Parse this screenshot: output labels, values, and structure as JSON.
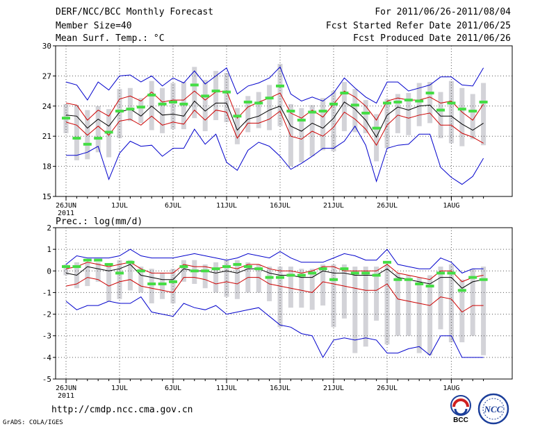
{
  "header": {
    "title": "DERF/NCC/BCC Monthly Forecast",
    "member_size": "Member Size=40",
    "variable_label": "Mean Surf. Temp.: °C",
    "period": "For 2011/06/26-2011/08/04",
    "fcst_started": "Fcst Started Refer Date 2011/06/25",
    "fcst_produced": "Fcst Produced Date 2011/06/26"
  },
  "footer": {
    "url": "http://cmdp.ncc.cma.gov.cn",
    "credit": "GrADS: COLA/IGES",
    "logo_bcc": "BCC",
    "logo_ncc": "NCC"
  },
  "colors": {
    "ensemble_mean": "#000000",
    "spread": "#cc0000",
    "extremes": "#0000cc",
    "box": "#d3d3d8",
    "marker": "#44dd44",
    "grid": "#555555"
  },
  "chart_data": [
    {
      "type": "line",
      "title": "Mean Surf. Temp.: °C",
      "xlabel": "",
      "ylabel": "°C",
      "ylim": [
        15,
        30
      ],
      "yticks": [
        "15",
        "18",
        "21",
        "24",
        "27",
        "30"
      ],
      "xticks": [
        {
          "day": 0,
          "label": "26JUN"
        },
        {
          "day": 5,
          "label": "1JUL"
        },
        {
          "day": 10,
          "label": "6JUL"
        },
        {
          "day": 15,
          "label": "11JUL"
        },
        {
          "day": 20,
          "label": "16JUL"
        },
        {
          "day": 25,
          "label": "21JUL"
        },
        {
          "day": 30,
          "label": "26JUL"
        },
        {
          "day": 36,
          "label": "1AUG"
        }
      ],
      "year_label": "2011",
      "x": [
        0,
        1,
        2,
        3,
        4,
        5,
        6,
        7,
        8,
        9,
        10,
        11,
        12,
        13,
        14,
        15,
        16,
        17,
        18,
        19,
        20,
        21,
        22,
        23,
        24,
        25,
        26,
        27,
        28,
        29,
        30,
        31,
        32,
        33,
        34,
        35,
        36,
        37,
        38,
        39
      ],
      "series": [
        {
          "name": "max",
          "values": [
            26.4,
            26.1,
            24.6,
            26.4,
            25.6,
            27.0,
            27.1,
            26.4,
            27.0,
            26.0,
            26.8,
            26.3,
            27.5,
            26.2,
            27.0,
            27.8,
            25.2,
            26.0,
            26.3,
            26.8,
            27.9,
            25.2,
            24.5,
            24.9,
            24.5,
            25.3,
            26.8,
            25.8,
            24.9,
            24.3,
            26.4,
            26.4,
            25.5,
            25.8,
            26.1,
            26.9,
            26.9,
            26.1,
            26.0,
            27.8
          ]
        },
        {
          "name": "upper",
          "values": [
            24.3,
            24.1,
            22.6,
            23.6,
            23.0,
            24.7,
            25.0,
            24.5,
            25.4,
            24.4,
            24.6,
            24.6,
            25.5,
            24.6,
            25.4,
            25.5,
            22.8,
            23.9,
            24.4,
            24.8,
            25.3,
            23.3,
            22.8,
            23.6,
            22.9,
            24.2,
            25.5,
            24.9,
            24.0,
            22.6,
            24.5,
            24.8,
            24.6,
            24.6,
            24.9,
            24.3,
            24.5,
            23.4,
            22.6,
            24.2
          ]
        },
        {
          "name": "mean",
          "values": [
            23.1,
            23.0,
            21.8,
            22.7,
            22.0,
            23.4,
            23.7,
            23.0,
            24.0,
            23.1,
            23.2,
            23.0,
            24.5,
            23.5,
            24.3,
            24.3,
            21.6,
            22.7,
            23.0,
            23.6,
            24.0,
            22.0,
            21.5,
            22.3,
            21.8,
            22.8,
            24.4,
            23.7,
            22.6,
            20.9,
            23.1,
            23.9,
            23.6,
            24.0,
            24.1,
            23.0,
            23.0,
            22.2,
            21.6,
            22.3
          ]
        },
        {
          "name": "lower",
          "values": [
            22.4,
            22.1,
            21.1,
            22.0,
            21.1,
            22.5,
            22.7,
            22.1,
            23.0,
            22.1,
            22.4,
            22.2,
            23.6,
            22.6,
            23.6,
            23.4,
            20.8,
            22.3,
            22.3,
            22.7,
            23.5,
            21.0,
            20.7,
            21.5,
            21.0,
            21.9,
            23.4,
            22.7,
            21.7,
            20.1,
            22.1,
            23.1,
            22.8,
            23.1,
            23.3,
            22.1,
            22.1,
            21.3,
            20.9,
            20.3
          ]
        },
        {
          "name": "min",
          "values": [
            19.1,
            19.1,
            19.4,
            20.0,
            16.7,
            19.3,
            20.5,
            20.0,
            20.1,
            19.0,
            19.8,
            19.8,
            21.7,
            20.2,
            21.2,
            18.4,
            17.6,
            19.6,
            20.4,
            20.0,
            19.0,
            17.7,
            18.3,
            19.0,
            19.8,
            19.8,
            20.5,
            22.0,
            20.1,
            16.5,
            19.8,
            20.1,
            20.2,
            21.2,
            21.2,
            17.9,
            16.9,
            16.2,
            17.0,
            18.8
          ]
        },
        {
          "name": "observed",
          "values": [
            22.8,
            20.8,
            20.2,
            20.8,
            21.4,
            23.5,
            23.7,
            23.9,
            25.1,
            24.2,
            24.4,
            24.2,
            26.1,
            25.0,
            25.5,
            25.4,
            23.0,
            24.4,
            24.3,
            24.8,
            26.0,
            23.5,
            22.6,
            23.4,
            23.5,
            24.2,
            25.3,
            24.1,
            23.3,
            21.8,
            24.3,
            24.4,
            24.6,
            24.5,
            25.3,
            23.6,
            24.3,
            23.7,
            23.5,
            24.4
          ]
        }
      ],
      "box_low": [
        21.3,
        18.6,
        18.7,
        19.4,
        18.9,
        20.8,
        22.5,
        22.3,
        21.6,
        21.3,
        21.7,
        21.7,
        22.8,
        21.5,
        22.6,
        22.4,
        20.2,
        21.4,
        21.8,
        21.6,
        22.0,
        18.0,
        18.4,
        19.0,
        19.6,
        19.5,
        21.5,
        21.4,
        21.3,
        18.5,
        19.8,
        21.3,
        21.1,
        22.0,
        22.3,
        20.8,
        20.3,
        20.0,
        20.7,
        20.1
      ],
      "box_high": [
        24.2,
        24.1,
        23.6,
        24.0,
        23.7,
        25.7,
        25.8,
        24.8,
        26.5,
        25.8,
        26.3,
        26.4,
        27.9,
        26.6,
        27.5,
        27.3,
        23.8,
        25.0,
        25.4,
        26.1,
        28.2,
        24.2,
        23.8,
        24.1,
        24.8,
        25.5,
        26.4,
        25.7,
        24.6,
        23.2,
        24.7,
        25.2,
        25.3,
        26.3,
        26.4,
        25.4,
        26.5,
        25.8,
        25.2,
        26.3
      ]
    },
    {
      "type": "line",
      "title": "Prec.: log(mm/d)",
      "xlabel": "",
      "ylabel": "log(mm/d)",
      "ylim": [
        -5,
        2
      ],
      "yticks": [
        "-5",
        "-4",
        "-3",
        "-2",
        "-1",
        "0",
        "1",
        "2"
      ],
      "xticks": [
        {
          "day": 0,
          "label": "26JUN"
        },
        {
          "day": 5,
          "label": "1JUL"
        },
        {
          "day": 10,
          "label": "6JUL"
        },
        {
          "day": 15,
          "label": "11JUL"
        },
        {
          "day": 20,
          "label": "16JUL"
        },
        {
          "day": 25,
          "label": "21JUL"
        },
        {
          "day": 30,
          "label": "26JUL"
        },
        {
          "day": 36,
          "label": "1AUG"
        }
      ],
      "year_label": "2011",
      "x": [
        0,
        1,
        2,
        3,
        4,
        5,
        6,
        7,
        8,
        9,
        10,
        11,
        12,
        13,
        14,
        15,
        16,
        17,
        18,
        19,
        20,
        21,
        22,
        23,
        24,
        25,
        26,
        27,
        28,
        29,
        30,
        31,
        32,
        33,
        34,
        35,
        36,
        37,
        38,
        39
      ],
      "series": [
        {
          "name": "max",
          "values": [
            0.3,
            0.7,
            0.6,
            0.6,
            0.6,
            0.7,
            1.0,
            0.7,
            0.6,
            0.6,
            0.6,
            0.7,
            0.8,
            0.7,
            0.6,
            0.5,
            0.6,
            0.8,
            0.7,
            0.6,
            0.9,
            0.6,
            0.4,
            0.4,
            0.4,
            0.6,
            0.8,
            0.7,
            0.5,
            0.5,
            1.0,
            0.3,
            0.2,
            0.1,
            0.1,
            0.6,
            0.4,
            -0.1,
            0.1,
            0.1
          ]
        },
        {
          "name": "upper",
          "values": [
            0.1,
            0.2,
            0.4,
            0.3,
            0.2,
            0.3,
            0.4,
            0.1,
            -0.1,
            -0.1,
            -0.1,
            0.3,
            0.2,
            0.2,
            0.1,
            0.2,
            0.1,
            0.3,
            0.3,
            0.1,
            0.0,
            0.0,
            -0.1,
            0.0,
            0.2,
            0.2,
            0.0,
            0.0,
            0.0,
            0.0,
            0.3,
            -0.1,
            -0.2,
            -0.3,
            -0.4,
            0.0,
            0.0,
            -0.5,
            -0.3,
            -0.2
          ]
        },
        {
          "name": "mean",
          "values": [
            -0.1,
            -0.2,
            0.2,
            0.1,
            0.0,
            0.1,
            0.3,
            -0.2,
            -0.3,
            -0.4,
            -0.4,
            0.1,
            0.0,
            0.0,
            -0.1,
            0.0,
            -0.1,
            0.1,
            0.1,
            -0.1,
            -0.2,
            -0.2,
            -0.3,
            -0.3,
            0.0,
            -0.1,
            -0.1,
            -0.2,
            -0.2,
            -0.2,
            0.1,
            -0.3,
            -0.4,
            -0.5,
            -0.6,
            -0.3,
            -0.3,
            -0.8,
            -0.5,
            -0.4
          ]
        },
        {
          "name": "lower",
          "values": [
            -0.7,
            -0.6,
            -0.3,
            -0.4,
            -0.7,
            -0.5,
            -0.4,
            -0.7,
            -0.8,
            -0.9,
            -1.0,
            -0.3,
            -0.3,
            -0.4,
            -0.6,
            -0.5,
            -0.6,
            -0.3,
            -0.3,
            -0.6,
            -0.7,
            -0.8,
            -0.9,
            -1.0,
            -0.5,
            -0.6,
            -0.7,
            -0.8,
            -0.9,
            -0.9,
            -0.6,
            -1.3,
            -1.4,
            -1.5,
            -1.6,
            -1.2,
            -1.3,
            -1.9,
            -1.6,
            -1.6
          ]
        },
        {
          "name": "min",
          "values": [
            -1.4,
            -1.8,
            -1.6,
            -1.6,
            -1.4,
            -1.5,
            -1.5,
            -1.2,
            -1.9,
            -2.0,
            -2.1,
            -1.5,
            -1.7,
            -1.8,
            -1.6,
            -2.0,
            -1.9,
            -1.8,
            -1.7,
            -2.1,
            -2.5,
            -2.6,
            -2.9,
            -3.0,
            -4.0,
            -3.2,
            -3.1,
            -3.2,
            -3.1,
            -3.2,
            -3.8,
            -3.8,
            -3.6,
            -3.5,
            -3.9,
            -3.0,
            -3.0,
            -4.0,
            -4.0,
            -4.0
          ]
        },
        {
          "name": "observed",
          "values": [
            0.2,
            0.2,
            0.5,
            0.5,
            0.3,
            -0.1,
            0.4,
            0.0,
            -0.6,
            -0.6,
            -0.5,
            0.2,
            0.0,
            0.0,
            0.1,
            0.2,
            0.3,
            0.2,
            0.1,
            -0.3,
            -0.3,
            -0.2,
            -0.2,
            -0.1,
            0.1,
            -0.4,
            0.1,
            -0.1,
            -0.1,
            -0.2,
            0.4,
            -0.4,
            -0.4,
            -0.6,
            -0.7,
            -0.1,
            -0.1,
            -0.9,
            -0.3,
            -0.4
          ]
        }
      ],
      "box_low": [
        -0.2,
        -0.8,
        -0.7,
        -0.5,
        -1.4,
        -1.3,
        -0.9,
        -1.0,
        -1.5,
        -1.3,
        -1.5,
        -0.5,
        -0.6,
        -0.8,
        -1.0,
        -1.2,
        -1.3,
        -1.0,
        -1.0,
        -1.4,
        -2.6,
        -1.7,
        -1.7,
        -1.8,
        -1.6,
        -2.6,
        -2.2,
        -3.8,
        -3.5,
        -2.3,
        -3.4,
        -3.0,
        -3.0,
        -3.8,
        -3.9,
        -2.7,
        -3.3,
        -3.3,
        -3.0,
        -3.9
      ],
      "box_high": [
        0.3,
        0.4,
        0.4,
        0.4,
        0.2,
        0.5,
        0.5,
        0.2,
        0.1,
        -0.1,
        0.1,
        0.5,
        0.5,
        0.3,
        0.4,
        0.5,
        0.5,
        0.4,
        0.3,
        0.2,
        0.2,
        0.2,
        0.1,
        0.1,
        0.3,
        0.3,
        0.3,
        0.2,
        0.2,
        0.2,
        0.3,
        -0.1,
        -0.2,
        -0.3,
        -0.2,
        0.2,
        0.3,
        -0.4,
        0.1,
        0.2
      ]
    }
  ]
}
